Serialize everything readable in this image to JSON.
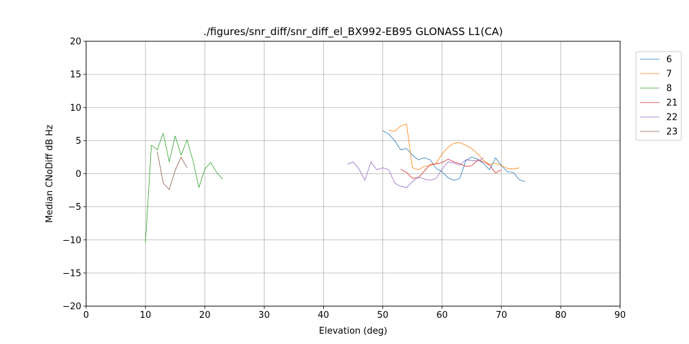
{
  "chart_data": {
    "type": "line",
    "title": "./figures/snr_diff/snr_diff_el_BX992-EB95 GLONASS  L1(CA)",
    "xlabel": "Elevation (deg)",
    "ylabel": "Median CNoDiff dB Hz",
    "xlim": [
      0,
      90
    ],
    "ylim": [
      -20,
      20
    ],
    "xticks": [
      0,
      10,
      20,
      30,
      40,
      50,
      60,
      70,
      80,
      90
    ],
    "yticks": [
      -20,
      -15,
      -10,
      -5,
      0,
      5,
      10,
      15,
      20
    ],
    "grid": true,
    "legend_position": "outside-right-top",
    "series": [
      {
        "name": "6",
        "color": "#1f77b4",
        "x": [
          50,
          51,
          52,
          53,
          54,
          55,
          56,
          57,
          58,
          59,
          60,
          61,
          62,
          63,
          64,
          65,
          66,
          67,
          68,
          69,
          70,
          71,
          72,
          73,
          74
        ],
        "y": [
          6.5,
          6.0,
          5.0,
          3.6,
          3.8,
          2.8,
          2.1,
          2.4,
          2.1,
          0.8,
          0.3,
          -0.6,
          -1.0,
          -0.7,
          2.0,
          2.5,
          2.2,
          1.5,
          0.6,
          2.4,
          1.2,
          0.3,
          0.2,
          -0.9,
          -1.2
        ]
      },
      {
        "name": "7",
        "color": "#ff7f0e",
        "x": [
          51,
          52,
          53,
          54,
          55,
          56,
          57,
          58,
          59,
          60,
          61,
          62,
          63,
          64,
          65,
          66,
          67,
          68,
          69,
          70,
          71,
          72,
          73
        ],
        "y": [
          6.6,
          6.4,
          7.2,
          7.5,
          0.9,
          0.6,
          1.1,
          1.2,
          1.6,
          3.0,
          4.0,
          4.6,
          4.7,
          4.3,
          3.8,
          3.0,
          2.0,
          1.4,
          1.6,
          1.2,
          0.8,
          0.7,
          0.9
        ]
      },
      {
        "name": "8",
        "color": "#2ca02c",
        "x": [
          10,
          11,
          12,
          13,
          14,
          15,
          16,
          17,
          18,
          19,
          20,
          21,
          22,
          23
        ],
        "y": [
          -10.4,
          4.3,
          3.6,
          6.1,
          1.8,
          5.7,
          2.8,
          5.1,
          2.0,
          -2.1,
          0.7,
          1.7,
          0.2,
          -0.8
        ]
      },
      {
        "name": "21",
        "color": "#d62728",
        "x": [
          53,
          54,
          55,
          56,
          57,
          58,
          59,
          60,
          61,
          62,
          63,
          64,
          65,
          66,
          67,
          68,
          69,
          70
        ],
        "y": [
          0.7,
          0.2,
          -0.7,
          -0.6,
          0.4,
          1.4,
          1.5,
          1.7,
          2.2,
          1.8,
          1.5,
          1.1,
          1.2,
          2.1,
          1.8,
          1.3,
          0.1,
          0.6
        ]
      },
      {
        "name": "22",
        "color": "#9467bd",
        "x": [
          44,
          45,
          46,
          47,
          48,
          49,
          50,
          51,
          52,
          53,
          54,
          55,
          56,
          57,
          58,
          59,
          60,
          61,
          62,
          63,
          64,
          65,
          66,
          67
        ],
        "y": [
          1.4,
          1.8,
          0.7,
          -1.0,
          1.8,
          0.6,
          0.9,
          0.6,
          -1.4,
          -1.9,
          -2.1,
          -1.2,
          -0.5,
          -0.8,
          -1.0,
          -0.7,
          0.7,
          1.8,
          1.6,
          1.3,
          2.1,
          2.0,
          1.9,
          2.4
        ]
      },
      {
        "name": "23",
        "color": "#8c564b",
        "x": [
          12,
          13,
          14,
          15,
          16,
          17
        ],
        "y": [
          3.3,
          -1.4,
          -2.4,
          0.5,
          2.5,
          0.9
        ]
      }
    ]
  }
}
